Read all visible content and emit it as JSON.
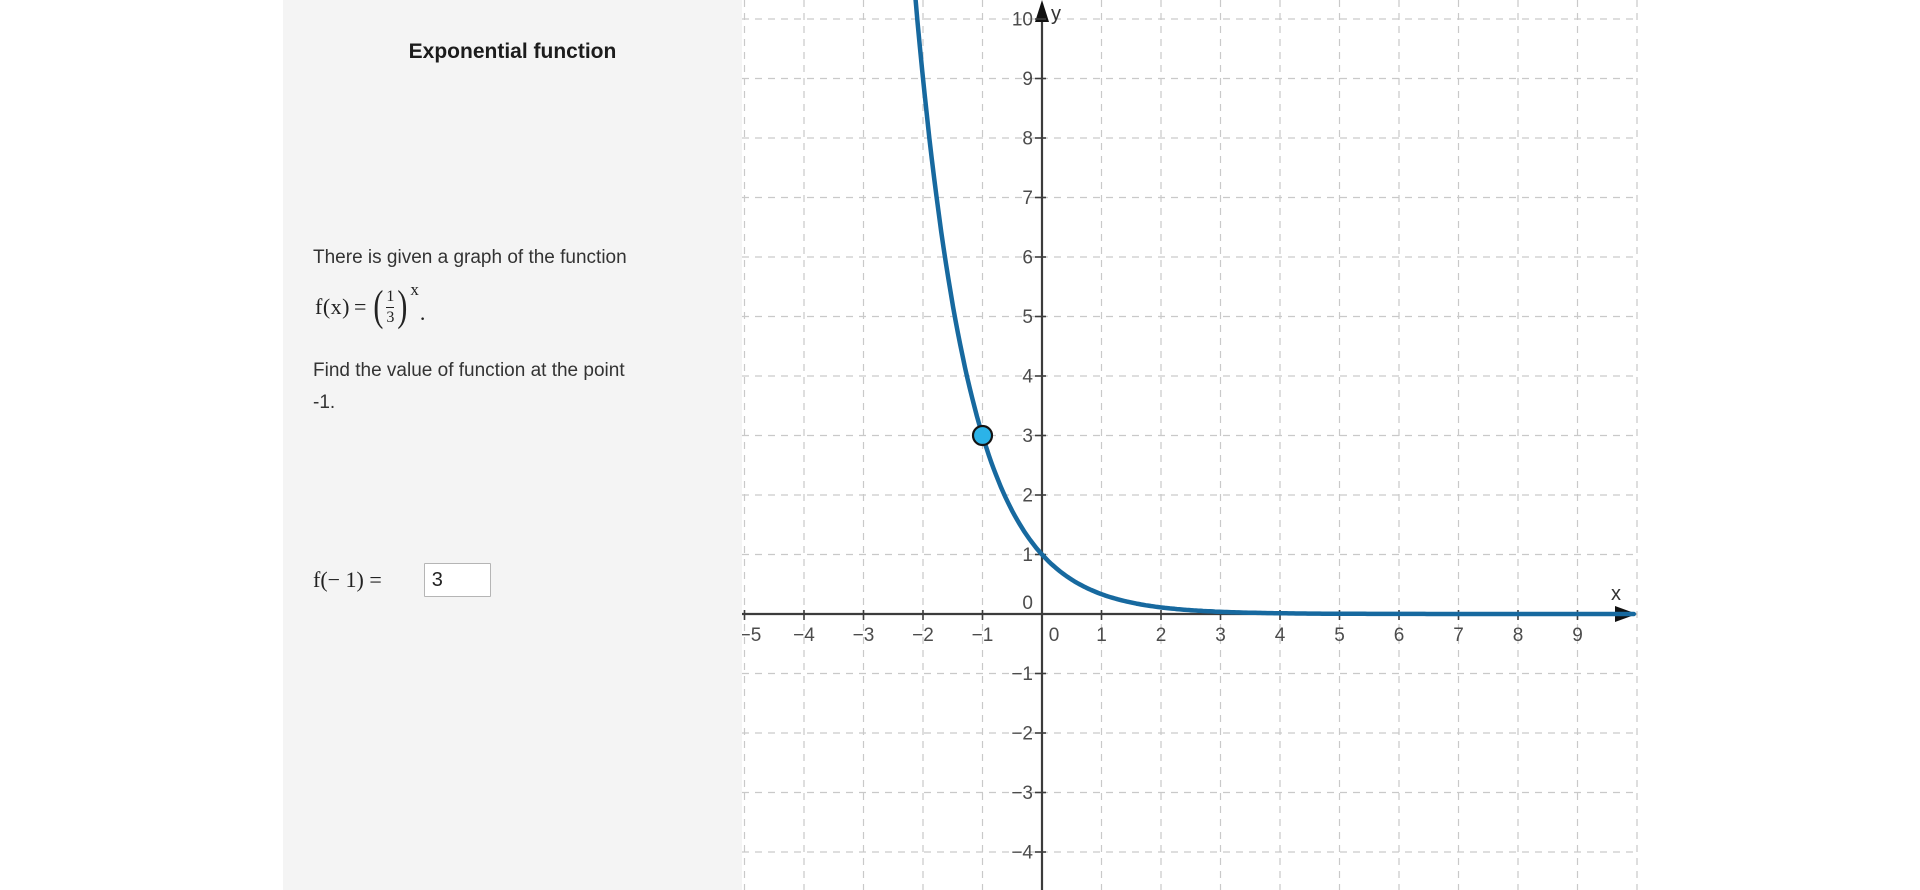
{
  "panel": {
    "title": "Exponential function",
    "problem": {
      "intro": "There is given a graph of the function",
      "formula": {
        "lhs": "f(x)",
        "equals": "=",
        "open": "(",
        "numerator": "1",
        "denominator": "3",
        "close": ")",
        "exponent": "x",
        "period": "."
      },
      "task_line1": "Find the value of function at the point",
      "task_line2": "-1."
    },
    "answer": {
      "label": "f(− 1) =",
      "value": "3"
    }
  },
  "chart_data": {
    "type": "line",
    "title": "Graph of f(x) = (1/3)^x",
    "function_label": "f(x) = (1/3)^x",
    "base": 0.3333333333,
    "x_axis": {
      "label": "x",
      "visible_min": -5,
      "visible_max": 10,
      "tick_step": 1,
      "tick_labels": [
        "−5",
        "−4",
        "−3",
        "−2",
        "−1",
        "0",
        "1",
        "2",
        "3",
        "4",
        "5",
        "6",
        "7",
        "8",
        "9"
      ]
    },
    "y_axis": {
      "label": "y",
      "visible_min": -4.6,
      "visible_max": 10.4,
      "tick_step": 1,
      "tick_labels": [
        "10",
        "9",
        "8",
        "7",
        "6",
        "5",
        "4",
        "3",
        "2",
        "1",
        "0",
        "−1",
        "−2",
        "−3",
        "−4"
      ],
      "origin_label": "0"
    },
    "grid": "dashed",
    "legend": "none",
    "highlighted_point": {
      "x": -1,
      "y": 3
    },
    "key_values": [
      {
        "x": -2,
        "y": 9
      },
      {
        "x": -1,
        "y": 3
      },
      {
        "x": 0,
        "y": 1
      },
      {
        "x": 1,
        "y": 0.333
      },
      {
        "x": 2,
        "y": 0.111
      },
      {
        "x": 3,
        "y": 0.037
      }
    ],
    "colors": {
      "curve": "#17699f",
      "point_fill": "#2bb3e8",
      "point_stroke": "#141414",
      "grid": "#c9c9c9",
      "axis": "#3c3c3c",
      "tick_label": "#4c4c4c",
      "axis_name": "#333333"
    }
  }
}
